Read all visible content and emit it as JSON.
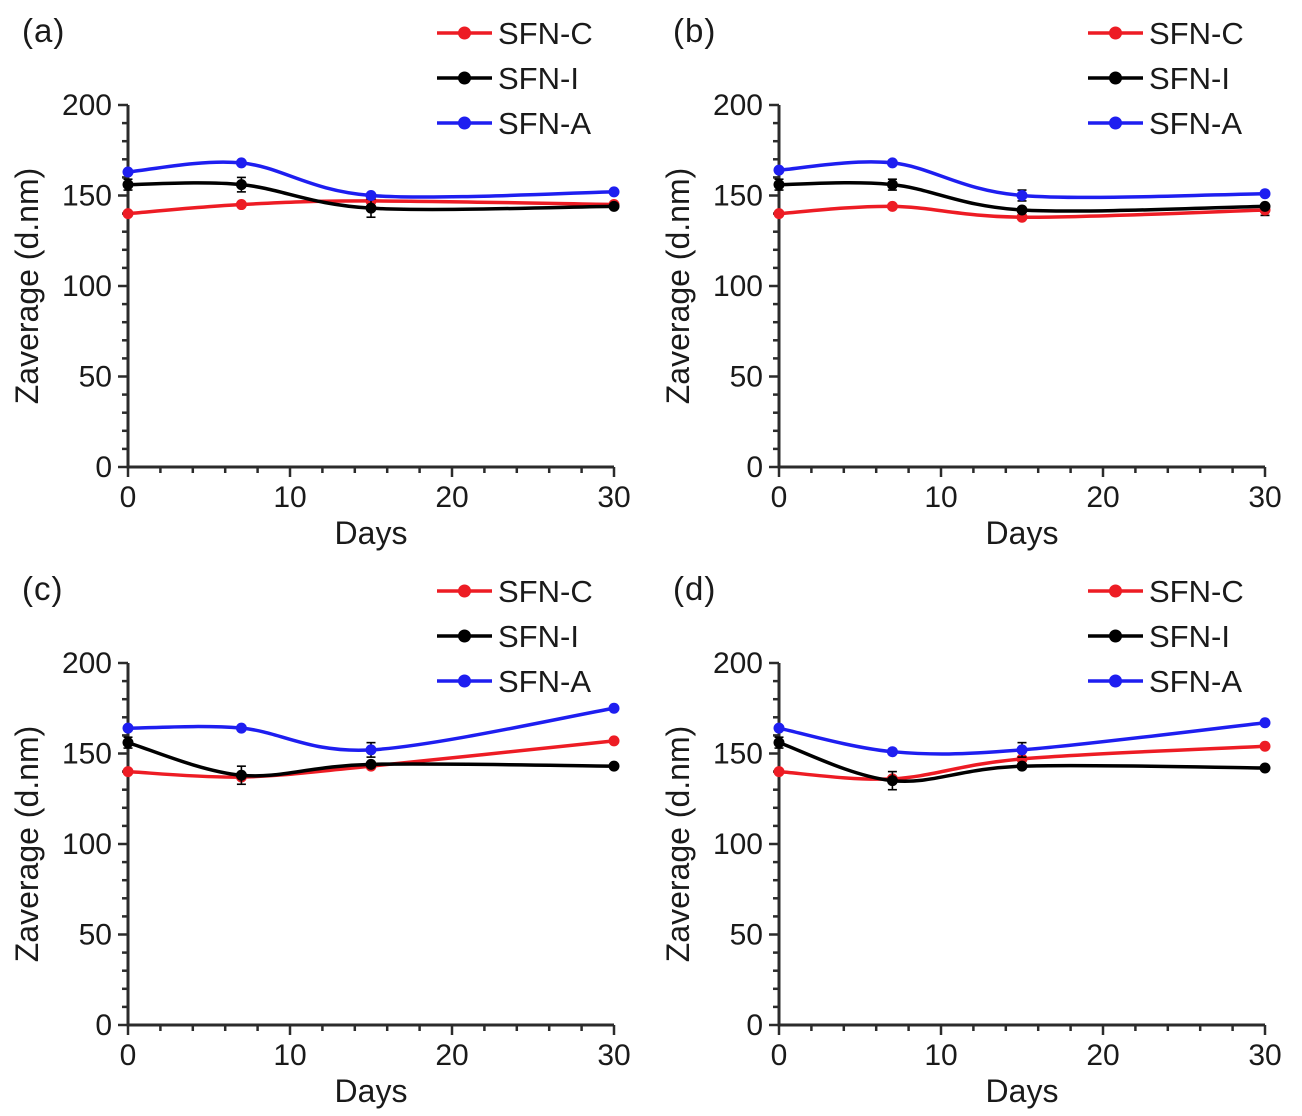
{
  "figure_background": "#ffffff",
  "panels": [
    {
      "label": "(a)"
    },
    {
      "label": "(b)"
    },
    {
      "label": "(c)"
    },
    {
      "label": "(d)"
    }
  ],
  "colors": {
    "sfn_c": "#ed1c24",
    "sfn_i": "#000000",
    "sfn_a": "#1e1ef0",
    "axis": "#2b2b2b",
    "text": "#1a1a1a"
  },
  "chart_data": [
    {
      "type": "line",
      "panel_label": "(a)",
      "title": "",
      "xlabel": "Days",
      "ylabel": "Zaverage (d.nm)",
      "x": [
        0,
        7,
        15,
        30
      ],
      "xlim": [
        0,
        30
      ],
      "ylim": [
        0,
        200
      ],
      "x_major_ticks": [
        0,
        10,
        20,
        30
      ],
      "x_minor_step": 2,
      "y_major_ticks": [
        0,
        50,
        100,
        150,
        200
      ],
      "y_minor_step": 10,
      "grid": false,
      "legend_position": "top-right",
      "series": [
        {
          "name": "SFN-C",
          "color": "#ed1c24",
          "values": [
            140,
            145,
            147,
            145
          ],
          "err": [
            0,
            0,
            0,
            0
          ]
        },
        {
          "name": "SFN-I",
          "color": "#000000",
          "values": [
            156,
            156,
            143,
            144
          ],
          "err": [
            3,
            4,
            5,
            0
          ]
        },
        {
          "name": "SFN-A",
          "color": "#1e1ef0",
          "values": [
            163,
            168,
            150,
            152
          ],
          "err": [
            0,
            0,
            0,
            0
          ]
        }
      ]
    },
    {
      "type": "line",
      "panel_label": "(b)",
      "title": "",
      "xlabel": "Days",
      "ylabel": "Zaverage (d.nm)",
      "x": [
        0,
        7,
        15,
        30
      ],
      "xlim": [
        0,
        30
      ],
      "ylim": [
        0,
        200
      ],
      "x_major_ticks": [
        0,
        10,
        20,
        30
      ],
      "x_minor_step": 2,
      "y_major_ticks": [
        0,
        50,
        100,
        150,
        200
      ],
      "y_minor_step": 10,
      "grid": false,
      "legend_position": "top-right",
      "series": [
        {
          "name": "SFN-C",
          "color": "#ed1c24",
          "values": [
            140,
            144,
            138,
            142
          ],
          "err": [
            0,
            0,
            0,
            3
          ]
        },
        {
          "name": "SFN-I",
          "color": "#000000",
          "values": [
            156,
            156,
            142,
            144
          ],
          "err": [
            3,
            3,
            0,
            0
          ]
        },
        {
          "name": "SFN-A",
          "color": "#1e1ef0",
          "values": [
            164,
            168,
            150,
            151
          ],
          "err": [
            0,
            0,
            3,
            0
          ]
        }
      ]
    },
    {
      "type": "line",
      "panel_label": "(c)",
      "title": "",
      "xlabel": "Days",
      "ylabel": "Zaverage (d.nm)",
      "x": [
        0,
        7,
        15,
        30
      ],
      "xlim": [
        0,
        30
      ],
      "ylim": [
        0,
        200
      ],
      "x_major_ticks": [
        0,
        10,
        20,
        30
      ],
      "x_minor_step": 2,
      "y_major_ticks": [
        0,
        50,
        100,
        150,
        200
      ],
      "y_minor_step": 10,
      "grid": false,
      "legend_position": "top-right",
      "series": [
        {
          "name": "SFN-C",
          "color": "#ed1c24",
          "values": [
            140,
            137,
            143,
            157
          ],
          "err": [
            0,
            0,
            0,
            0
          ]
        },
        {
          "name": "SFN-I",
          "color": "#000000",
          "values": [
            156,
            138,
            144,
            143
          ],
          "err": [
            3,
            5,
            0,
            0
          ]
        },
        {
          "name": "SFN-A",
          "color": "#1e1ef0",
          "values": [
            164,
            164,
            152,
            175
          ],
          "err": [
            0,
            0,
            4,
            0
          ]
        }
      ]
    },
    {
      "type": "line",
      "panel_label": "(d)",
      "title": "",
      "xlabel": "Days",
      "ylabel": "Zaverage (d.nm)",
      "x": [
        0,
        7,
        15,
        30
      ],
      "xlim": [
        0,
        30
      ],
      "ylim": [
        0,
        200
      ],
      "x_major_ticks": [
        0,
        10,
        20,
        30
      ],
      "x_minor_step": 2,
      "y_major_ticks": [
        0,
        50,
        100,
        150,
        200
      ],
      "y_minor_step": 10,
      "grid": false,
      "legend_position": "top-right",
      "series": [
        {
          "name": "SFN-C",
          "color": "#ed1c24",
          "values": [
            140,
            136,
            147,
            154
          ],
          "err": [
            0,
            0,
            0,
            0
          ]
        },
        {
          "name": "SFN-I",
          "color": "#000000",
          "values": [
            156,
            135,
            143,
            142
          ],
          "err": [
            3,
            5,
            0,
            0
          ]
        },
        {
          "name": "SFN-A",
          "color": "#1e1ef0",
          "values": [
            164,
            151,
            152,
            167
          ],
          "err": [
            0,
            0,
            4,
            0
          ]
        }
      ]
    }
  ]
}
